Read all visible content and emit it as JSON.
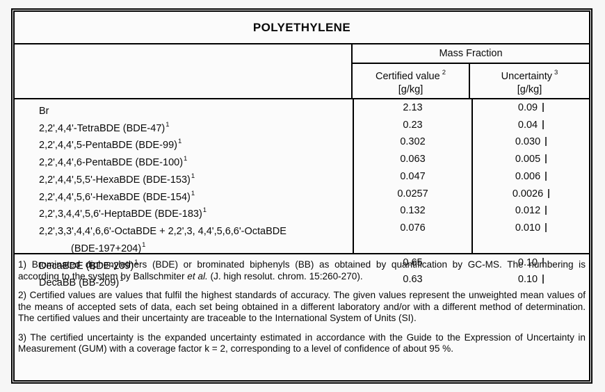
{
  "document": {
    "title": "POLYETHYLENE"
  },
  "table": {
    "group_header": "Mass Fraction",
    "columns": [
      {
        "label": "Certified value",
        "sup": "2",
        "unit": "[g/kg]"
      },
      {
        "label": "Uncertainty",
        "sup": "3",
        "unit": "[g/kg]"
      }
    ],
    "rows": [
      {
        "name": "Br",
        "sup": "",
        "name2": "",
        "sup2": "",
        "certified": "2.13",
        "uncertainty": "0.09",
        "artifact": false
      },
      {
        "name": "2,2',4,4'-TetraBDE (BDE-47)",
        "sup": "1",
        "name2": "",
        "sup2": "",
        "certified": "0.23",
        "uncertainty": "0.04",
        "artifact": false
      },
      {
        "name": "2,2',4,4',5-PentaBDE (BDE-99)",
        "sup": "1",
        "name2": "",
        "sup2": "",
        "certified": "0.302",
        "uncertainty": "0.030",
        "artifact": false
      },
      {
        "name": "2,2',4,4',6-PentaBDE (BDE-100)",
        "sup": "1",
        "name2": "",
        "sup2": "",
        "certified": "0.063",
        "uncertainty": "0.005",
        "artifact": false
      },
      {
        "name": "2,2',4,4',5,5'-HexaBDE (BDE-153)",
        "sup": "1",
        "name2": "",
        "sup2": "",
        "certified": "0.047",
        "uncertainty": "0.006",
        "artifact": false
      },
      {
        "name": "2,2',4,4',5,6'-HexaBDE (BDE-154)",
        "sup": "1",
        "name2": "",
        "sup2": "",
        "certified": "0.0257",
        "uncertainty": "0.0026",
        "artifact": true
      },
      {
        "name": "2,2',3,4,4',5,6'-HeptaBDE (BDE-183)",
        "sup": "1",
        "name2": "",
        "sup2": "",
        "certified": "0.132",
        "uncertainty": "0.012",
        "artifact": false
      },
      {
        "name": "2,2',3,3',4,4',6,6'-OctaBDE + 2,2',3, 4,4',5,6,6'-OctaBDE",
        "sup": "",
        "name2": "(BDE-197+204)",
        "sup2": "1",
        "certified": "0.076",
        "uncertainty": "0.010",
        "artifact": false
      },
      {
        "name": "DecaBDE (BDE-209)",
        "sup": "1",
        "name2": "",
        "sup2": "",
        "certified": "0.65",
        "uncertainty": "0.10",
        "artifact": false
      },
      {
        "name": "DecaBB (BB-209)",
        "sup": "1",
        "name2": "",
        "sup2": "",
        "certified": "0.63",
        "uncertainty": "0.10",
        "artifact": false
      }
    ]
  },
  "footnotes": [
    {
      "parts": [
        {
          "text": "1) Brominated diphenylethers (BDE) or brominated biphenyls (BB) as obtained by quantification by GC-MS. The numbering is according to the system by Ballschmiter ",
          "italic": false
        },
        {
          "text": "et al.",
          "italic": true
        },
        {
          "text": " (J. high resolut. chrom. 15:260-270).",
          "italic": false
        }
      ]
    },
    {
      "parts": [
        {
          "text": "2) Certified values are values that fulfil the highest standards of accuracy. The given values represent the unweighted mean values of the means of accepted sets of data, each set being obtained in a different laboratory and/or with a different method of determination. The certified values and their uncertainty are traceable to the International System of Units (SI).",
          "italic": false
        }
      ]
    },
    {
      "parts": [
        {
          "text": "3) The certified uncertainty is the expanded uncertainty estimated in accordance with the Guide to the Expression of Uncertainty in Measurement (GUM) with a coverage factor k = 2, corresponding to a level of confidence of about 95 %.",
          "italic": false
        }
      ]
    }
  ],
  "colors": {
    "border": "#000000",
    "text": "#0a0a0a",
    "sheet_background": "#fbfbfb",
    "page_background": "#f6f6f6"
  }
}
